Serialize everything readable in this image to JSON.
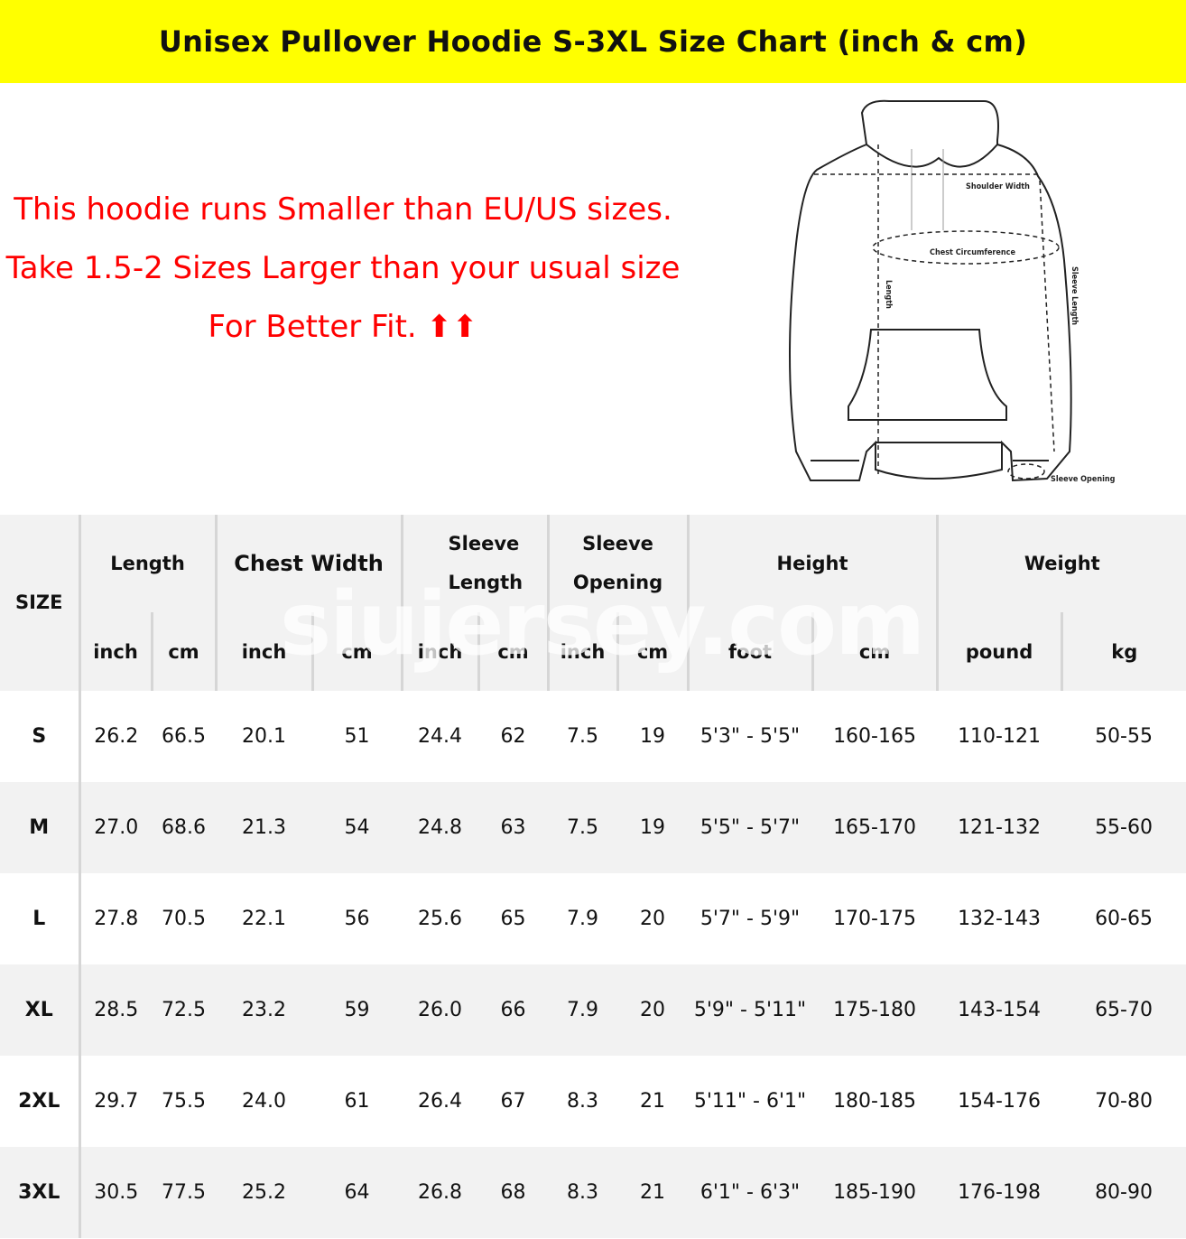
{
  "banner": {
    "title": "Unisex Pullover Hoodie S-3XL Size Chart (inch & cm)",
    "color": "#ffff00"
  },
  "notice": {
    "line1": "This hoodie runs Smaller than EU/US sizes.",
    "line2": "Take 1.5-2 Sizes Larger than your usual size For Better Fit. ⬆⬆",
    "color": "#ff0000"
  },
  "diagram": {
    "labels": {
      "shoulder": "Shoulder Width",
      "chest": "Chest Circumference",
      "length": "Length",
      "sleeve_length": "Sleeve Length",
      "sleeve_opening": "Sleeve Opening"
    }
  },
  "watermark": "siujersey.com",
  "table": {
    "size_header": "SIZE",
    "groups": [
      "Length",
      "Chest Width",
      "Sleeve Length",
      "Sleeve Opening",
      "Height",
      "Weight"
    ],
    "units": [
      "inch",
      "cm",
      "inch",
      "cm",
      "inch",
      "cm",
      "inch",
      "cm",
      "foot",
      "cm",
      "pound",
      "kg"
    ],
    "rows": [
      [
        "S",
        "26.2",
        "66.5",
        "20.1",
        "51",
        "24.4",
        "62",
        "7.5",
        "19",
        "5'3\" - 5'5\"",
        "160-165",
        "110-121",
        "50-55"
      ],
      [
        "M",
        "27.0",
        "68.6",
        "21.3",
        "54",
        "24.8",
        "63",
        "7.5",
        "19",
        "5'5\" - 5'7\"",
        "165-170",
        "121-132",
        "55-60"
      ],
      [
        "L",
        "27.8",
        "70.5",
        "22.1",
        "56",
        "25.6",
        "65",
        "7.9",
        "20",
        "5'7\" - 5'9\"",
        "170-175",
        "132-143",
        "60-65"
      ],
      [
        "XL",
        "28.5",
        "72.5",
        "23.2",
        "59",
        "26.0",
        "66",
        "7.9",
        "20",
        "5'9\" - 5'11\"",
        "175-180",
        "143-154",
        "65-70"
      ],
      [
        "2XL",
        "29.7",
        "75.5",
        "24.0",
        "61",
        "26.4",
        "67",
        "8.3",
        "21",
        "5'11\" - 6'1\"",
        "180-185",
        "154-176",
        "70-80"
      ],
      [
        "3XL",
        "30.5",
        "77.5",
        "25.2",
        "64",
        "26.8",
        "68",
        "8.3",
        "21",
        "6'1\" - 6'3\"",
        "185-190",
        "176-198",
        "80-90"
      ]
    ]
  }
}
